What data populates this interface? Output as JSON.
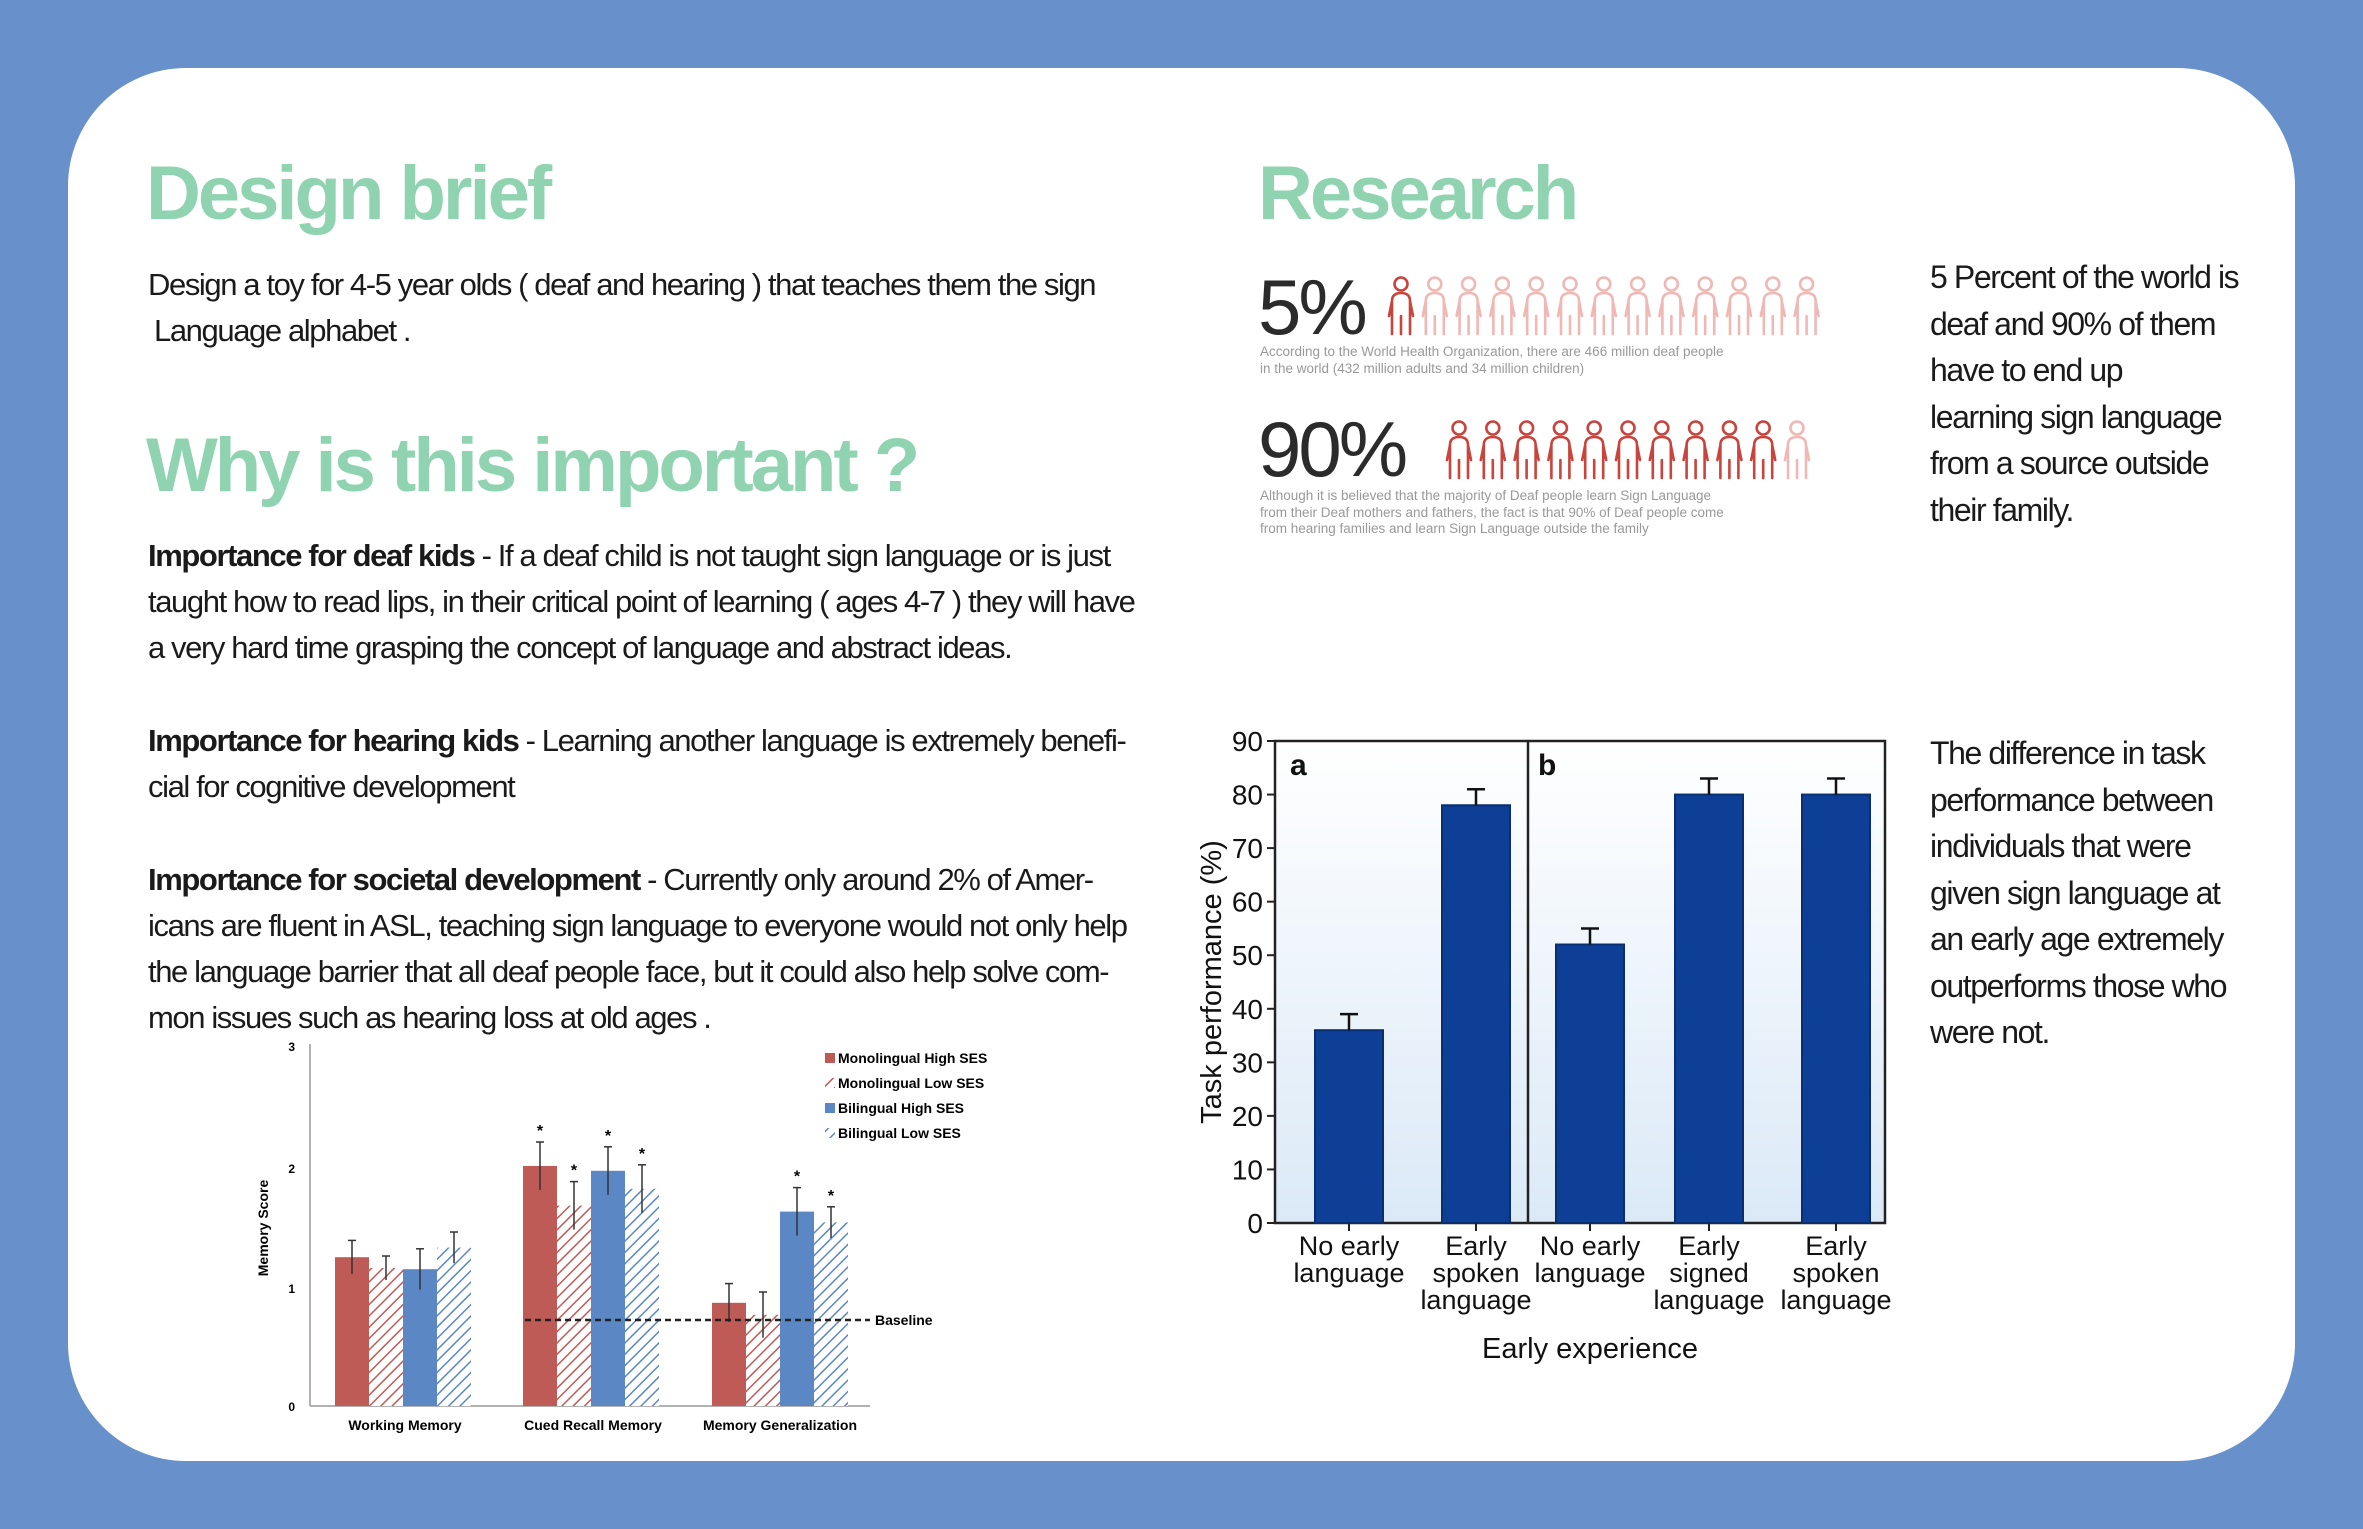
{
  "design_brief": {
    "heading": "Design brief",
    "text_line1": "Design a toy for 4-5 year olds ( deaf and hearing ) that teaches them the sign",
    "text_line2": "Language alphabet ."
  },
  "importance": {
    "heading": "Why is this important ?",
    "paragraphs": [
      {
        "lead": "Importance for deaf kids",
        "lines": [
          " - If a deaf child is not taught sign language or is just",
          "taught how to read lips, in their critical point of learning ( ages 4-7 ) they will have",
          "a very hard time grasping the concept of language and abstract ideas."
        ]
      },
      {
        "lead": "Importance for hearing kids",
        "lines": [
          " - Learning another language is extremely benefi-",
          "cial for cognitive development"
        ]
      },
      {
        "lead": "Importance for societal development",
        "lines": [
          " - Currently only around 2% of Amer-",
          "icans are fluent in ASL, teaching sign language to everyone would not only help",
          "the language barrier that all deaf people face, but it could also help solve com-",
          "mon issues such as hearing loss at old ages ."
        ]
      }
    ]
  },
  "research": {
    "heading": "Research",
    "stats": [
      {
        "percent": "5%",
        "filled_fraction": 0.05,
        "icons_total": 13,
        "note_line1": "According to the World Health Organization, there are 466 million deaf people",
        "note_line2": "in the world (432 million adults and 34 million children)"
      },
      {
        "percent": "90%",
        "filled_fraction": 0.9,
        "icons_total": 11,
        "note_line1": "Although it is believed that the majority of Deaf people learn Sign Language",
        "note_line2": "from their Deaf mothers and fathers, the fact is that 90% of Deaf people come",
        "note_line3": "from hearing families and learn Sign Language outside the family"
      }
    ],
    "side_note_lines": [
      "5 Percent of the world is",
      "deaf and 90% of them",
      "have to end up",
      "learning sign language",
      "from a source outside",
      "their family."
    ],
    "chart_note_lines": [
      "The difference in task",
      "performance between",
      "individuals that were",
      "given sign language at",
      "an early age extremely",
      "outperforms those who",
      "were not."
    ]
  },
  "colors": {
    "background": "#6891cc",
    "heading_green": "#8fd3b0",
    "icon_red": "#c8443d",
    "icon_pink": "#f0b8b4",
    "bar_navy": "#0c3f95",
    "mono_red": "#bf5b57",
    "bili_blue": "#5b87c5"
  },
  "chart_data": [
    {
      "type": "bar",
      "ylabel": "Task performance (%)",
      "xlabel": "Early experience",
      "ylim": [
        0,
        90
      ],
      "yticks": [
        "0",
        "10",
        "20",
        "30",
        "40",
        "50",
        "60",
        "70",
        "80",
        "90"
      ],
      "panels": [
        {
          "label": "a",
          "bars": [
            {
              "category_lines": [
                "No early",
                "language"
              ],
              "value": 36,
              "error": 3
            },
            {
              "category_lines": [
                "Early",
                "spoken",
                "language"
              ],
              "value": 78,
              "error": 3
            }
          ]
        },
        {
          "label": "b",
          "bars": [
            {
              "category_lines": [
                "No early",
                "language"
              ],
              "value": 52,
              "error": 3
            },
            {
              "category_lines": [
                "Early",
                "signed",
                "language"
              ],
              "value": 80,
              "error": 3
            },
            {
              "category_lines": [
                "Early",
                "spoken",
                "language"
              ],
              "value": 80,
              "error": 3
            }
          ]
        }
      ]
    },
    {
      "type": "bar",
      "ylabel": "Memory Score",
      "ylim": [
        0,
        3
      ],
      "yticks": [
        "0",
        "1",
        "2",
        "3"
      ],
      "categories": [
        "Working Memory",
        "Cued Recall Memory",
        "Memory Generalization"
      ],
      "baseline": {
        "label": "Baseline",
        "value": 0.7
      },
      "legend_position": "top-right",
      "series": [
        {
          "name": "Monolingual High SES",
          "values": [
            1.24,
            2.0,
            0.86
          ],
          "errors": [
            0.14,
            0.2,
            0.16
          ],
          "stars": [
            false,
            true,
            false
          ],
          "hatched": false,
          "color": "#bf5b57"
        },
        {
          "name": "Monolingual Low SES",
          "values": [
            1.15,
            1.67,
            0.76
          ],
          "errors": [
            0.1,
            0.2,
            0.19
          ],
          "stars": [
            false,
            true,
            false
          ],
          "hatched": true,
          "color": "#bf5b57"
        },
        {
          "name": "Bilingual High SES",
          "values": [
            1.14,
            1.96,
            1.62
          ],
          "errors": [
            0.17,
            0.2,
            0.2
          ],
          "stars": [
            false,
            true,
            true
          ],
          "hatched": false,
          "color": "#5b87c5"
        },
        {
          "name": "Bilingual Low SES",
          "values": [
            1.32,
            1.81,
            1.53
          ],
          "errors": [
            0.13,
            0.2,
            0.13
          ],
          "stars": [
            false,
            true,
            true
          ],
          "hatched": true,
          "color": "#5b87c5"
        }
      ],
      "star_label": "*"
    }
  ]
}
